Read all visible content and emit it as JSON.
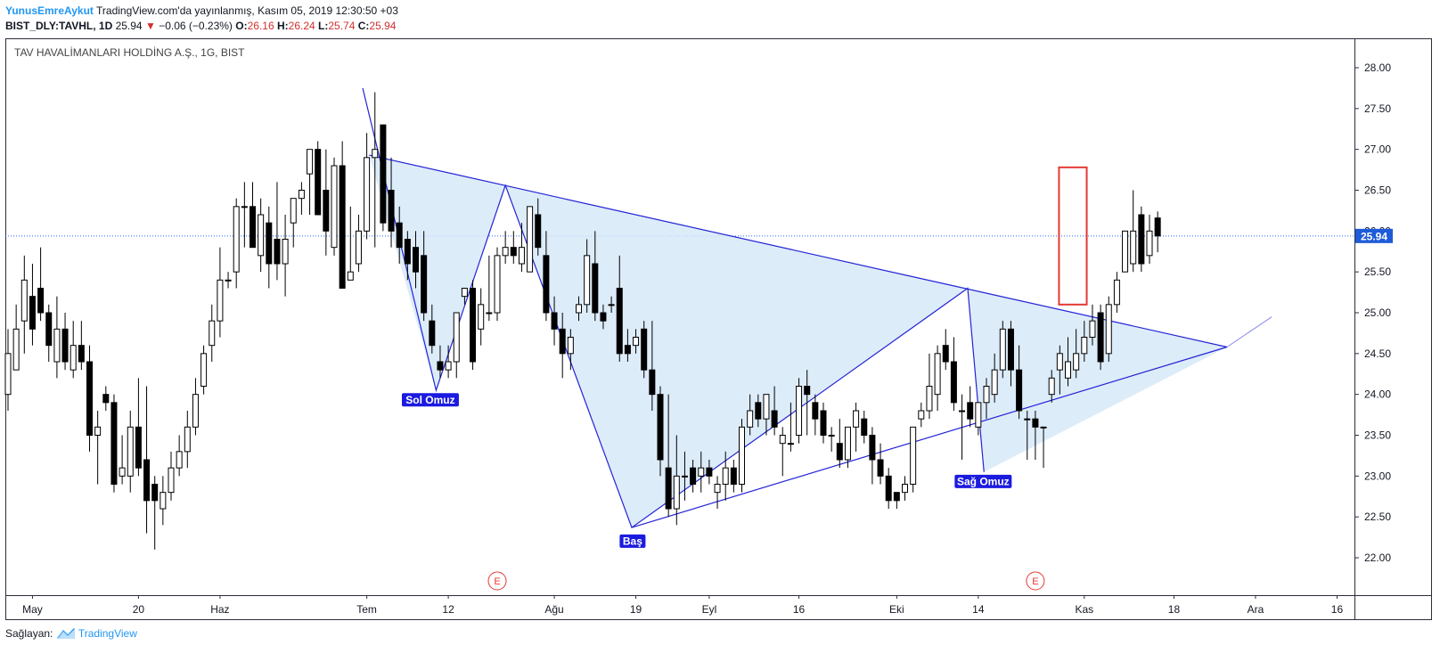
{
  "header": {
    "author": "YunusEmreAykut",
    "published": " TradingView.com'da yayınlanmış, Kasım 05, 2019 12:30:50 +03",
    "symbol": "BIST_DLY:TAVHL, 1D",
    "last": "25.94",
    "change_arrow": "▼",
    "change": "−0.06 (−0.23%)",
    "o_label": "O:",
    "o_val": "26.16",
    "h_label": "H:",
    "h_val": "26.24",
    "l_label": "L:",
    "l_val": "25.74",
    "c_label": "C:",
    "c_val": "25.94"
  },
  "footer": {
    "provider_label": "Sağlayan:",
    "provider_name": "TradingView"
  },
  "colors": {
    "up_body": "#ffffff",
    "down_body": "#000000",
    "wick": "#000000",
    "pattern_line": "#2323d6",
    "pattern_fill": "#d7e9f8",
    "price_line": "#2962ff",
    "highlight_box": "#e53935",
    "earnings": "#e53935",
    "label_bg": "#1b1be0"
  },
  "chart_data": {
    "type": "candlestick",
    "title": "TAV HAVALİMANLARI HOLDİNG A.Ş., 1G, BIST",
    "last_price": 25.94,
    "last_price_label": "25.94",
    "y_ticks": [
      "22.00",
      "22.50",
      "23.00",
      "23.50",
      "24.00",
      "24.50",
      "25.00",
      "25.50",
      "26.00",
      "26.50",
      "27.00",
      "27.50",
      "28.00"
    ],
    "ylim": [
      21.6,
      28.4
    ],
    "x_ticks": [
      {
        "i": 3,
        "label": "May"
      },
      {
        "i": 16,
        "label": "20"
      },
      {
        "i": 26,
        "label": "Haz"
      },
      {
        "i": 44,
        "label": "Tem"
      },
      {
        "i": 54,
        "label": "12"
      },
      {
        "i": 67,
        "label": "Ağu"
      },
      {
        "i": 77,
        "label": "19"
      },
      {
        "i": 86,
        "label": "Eyl"
      },
      {
        "i": 97,
        "label": "16"
      },
      {
        "i": 109,
        "label": "Eki"
      },
      {
        "i": 119,
        "label": "14"
      },
      {
        "i": 132,
        "label": "Kas"
      },
      {
        "i": 143,
        "label": "18"
      },
      {
        "i": 153,
        "label": "Ara"
      },
      {
        "i": 163,
        "label": "16"
      }
    ],
    "candles": [
      {
        "o": 24.0,
        "h": 24.8,
        "l": 23.8,
        "c": 24.5
      },
      {
        "o": 24.3,
        "h": 25.1,
        "l": 24.3,
        "c": 24.8
      },
      {
        "o": 24.9,
        "h": 25.7,
        "l": 24.5,
        "c": 25.4
      },
      {
        "o": 25.2,
        "h": 25.6,
        "l": 24.6,
        "c": 24.8
      },
      {
        "o": 25.3,
        "h": 25.8,
        "l": 24.9,
        "c": 25.0
      },
      {
        "o": 25.0,
        "h": 25.1,
        "l": 24.4,
        "c": 24.6
      },
      {
        "o": 24.4,
        "h": 25.2,
        "l": 24.2,
        "c": 24.8
      },
      {
        "o": 24.8,
        "h": 25.0,
        "l": 24.3,
        "c": 24.4
      },
      {
        "o": 24.3,
        "h": 24.9,
        "l": 24.2,
        "c": 24.6
      },
      {
        "o": 24.6,
        "h": 24.9,
        "l": 24.3,
        "c": 24.4
      },
      {
        "o": 24.4,
        "h": 24.6,
        "l": 23.3,
        "c": 23.5
      },
      {
        "o": 23.5,
        "h": 23.8,
        "l": 22.9,
        "c": 23.6
      },
      {
        "o": 24.0,
        "h": 24.1,
        "l": 23.8,
        "c": 23.9
      },
      {
        "o": 23.9,
        "h": 24.0,
        "l": 22.8,
        "c": 22.9
      },
      {
        "o": 23.0,
        "h": 23.5,
        "l": 22.9,
        "c": 23.1
      },
      {
        "o": 23.0,
        "h": 23.8,
        "l": 22.8,
        "c": 23.6
      },
      {
        "o": 23.6,
        "h": 24.2,
        "l": 23.0,
        "c": 23.1
      },
      {
        "o": 23.2,
        "h": 24.1,
        "l": 22.3,
        "c": 22.7
      },
      {
        "o": 22.9,
        "h": 23.0,
        "l": 22.1,
        "c": 22.7
      },
      {
        "o": 22.6,
        "h": 23.0,
        "l": 22.4,
        "c": 22.8
      },
      {
        "o": 22.8,
        "h": 23.3,
        "l": 22.7,
        "c": 23.1
      },
      {
        "o": 23.1,
        "h": 23.5,
        "l": 23.0,
        "c": 23.3
      },
      {
        "o": 23.3,
        "h": 23.8,
        "l": 23.1,
        "c": 23.6
      },
      {
        "o": 23.6,
        "h": 24.2,
        "l": 23.5,
        "c": 24.0
      },
      {
        "o": 24.1,
        "h": 24.6,
        "l": 24.0,
        "c": 24.5
      },
      {
        "o": 24.6,
        "h": 25.1,
        "l": 24.4,
        "c": 24.9
      },
      {
        "o": 24.9,
        "h": 25.8,
        "l": 24.7,
        "c": 25.4
      },
      {
        "o": 25.4,
        "h": 25.5,
        "l": 25.3,
        "c": 25.4
      },
      {
        "o": 25.5,
        "h": 26.4,
        "l": 25.3,
        "c": 26.3
      },
      {
        "o": 26.3,
        "h": 26.6,
        "l": 25.8,
        "c": 26.3
      },
      {
        "o": 26.3,
        "h": 26.6,
        "l": 25.8,
        "c": 25.8
      },
      {
        "o": 25.7,
        "h": 26.4,
        "l": 25.5,
        "c": 26.2
      },
      {
        "o": 26.1,
        "h": 26.3,
        "l": 25.3,
        "c": 25.6
      },
      {
        "o": 25.9,
        "h": 26.6,
        "l": 25.4,
        "c": 25.6
      },
      {
        "o": 25.6,
        "h": 26.2,
        "l": 25.2,
        "c": 25.9
      },
      {
        "o": 26.1,
        "h": 26.4,
        "l": 25.8,
        "c": 26.4
      },
      {
        "o": 26.4,
        "h": 26.6,
        "l": 26.2,
        "c": 26.5
      },
      {
        "o": 26.7,
        "h": 27.0,
        "l": 26.2,
        "c": 27.0
      },
      {
        "o": 27.0,
        "h": 27.1,
        "l": 26.2,
        "c": 26.2
      },
      {
        "o": 26.5,
        "h": 27.0,
        "l": 25.7,
        "c": 26.0
      },
      {
        "o": 25.8,
        "h": 26.9,
        "l": 25.7,
        "c": 26.8
      },
      {
        "o": 26.8,
        "h": 27.1,
        "l": 25.3,
        "c": 25.3
      },
      {
        "o": 25.4,
        "h": 26.3,
        "l": 25.4,
        "c": 25.5
      },
      {
        "o": 25.6,
        "h": 26.2,
        "l": 25.5,
        "c": 26.0
      },
      {
        "o": 26.0,
        "h": 27.2,
        "l": 25.9,
        "c": 26.9
      },
      {
        "o": 26.9,
        "h": 27.7,
        "l": 25.8,
        "c": 27.0
      },
      {
        "o": 27.3,
        "h": 27.3,
        "l": 26.0,
        "c": 26.1
      },
      {
        "o": 26.5,
        "h": 26.9,
        "l": 25.8,
        "c": 26.0
      },
      {
        "o": 26.1,
        "h": 26.3,
        "l": 25.6,
        "c": 25.8
      },
      {
        "o": 25.9,
        "h": 26.0,
        "l": 25.4,
        "c": 25.6
      },
      {
        "o": 25.8,
        "h": 26.0,
        "l": 25.3,
        "c": 25.5
      },
      {
        "o": 25.7,
        "h": 26.0,
        "l": 24.9,
        "c": 25.0
      },
      {
        "o": 24.9,
        "h": 25.1,
        "l": 24.5,
        "c": 24.6
      },
      {
        "o": 24.4,
        "h": 24.6,
        "l": 24.2,
        "c": 24.3
      },
      {
        "o": 24.3,
        "h": 24.6,
        "l": 24.2,
        "c": 24.4
      },
      {
        "o": 24.4,
        "h": 25.0,
        "l": 24.2,
        "c": 25.0
      },
      {
        "o": 25.2,
        "h": 25.3,
        "l": 25.1,
        "c": 25.3
      },
      {
        "o": 25.3,
        "h": 25.4,
        "l": 24.3,
        "c": 24.4
      },
      {
        "o": 24.8,
        "h": 25.3,
        "l": 24.6,
        "c": 25.1
      },
      {
        "o": 25.0,
        "h": 25.7,
        "l": 24.9,
        "c": 25.0
      },
      {
        "o": 25.0,
        "h": 25.8,
        "l": 24.9,
        "c": 25.7
      },
      {
        "o": 25.7,
        "h": 26.0,
        "l": 25.6,
        "c": 25.8
      },
      {
        "o": 25.8,
        "h": 26.0,
        "l": 25.6,
        "c": 25.7
      },
      {
        "o": 25.6,
        "h": 26.1,
        "l": 25.5,
        "c": 25.8
      },
      {
        "o": 25.5,
        "h": 26.3,
        "l": 25.5,
        "c": 26.3
      },
      {
        "o": 26.2,
        "h": 26.4,
        "l": 25.7,
        "c": 25.8
      },
      {
        "o": 25.7,
        "h": 26.0,
        "l": 24.9,
        "c": 25.0
      },
      {
        "o": 25.0,
        "h": 25.2,
        "l": 24.6,
        "c": 24.8
      },
      {
        "o": 24.8,
        "h": 25.0,
        "l": 24.2,
        "c": 24.5
      },
      {
        "o": 24.5,
        "h": 24.8,
        "l": 24.3,
        "c": 24.7
      },
      {
        "o": 25.0,
        "h": 25.2,
        "l": 24.9,
        "c": 25.1
      },
      {
        "o": 25.1,
        "h": 25.9,
        "l": 25.0,
        "c": 25.7
      },
      {
        "o": 25.6,
        "h": 26.0,
        "l": 24.9,
        "c": 25.0
      },
      {
        "o": 25.0,
        "h": 25.1,
        "l": 24.8,
        "c": 24.9
      },
      {
        "o": 25.1,
        "h": 25.2,
        "l": 25.0,
        "c": 25.1
      },
      {
        "o": 25.3,
        "h": 25.7,
        "l": 24.4,
        "c": 24.5
      },
      {
        "o": 24.6,
        "h": 24.8,
        "l": 24.4,
        "c": 24.5
      },
      {
        "o": 24.6,
        "h": 24.8,
        "l": 24.5,
        "c": 24.7
      },
      {
        "o": 24.8,
        "h": 24.9,
        "l": 24.2,
        "c": 24.3
      },
      {
        "o": 24.3,
        "h": 24.9,
        "l": 23.8,
        "c": 24.0
      },
      {
        "o": 24.0,
        "h": 24.1,
        "l": 23.0,
        "c": 23.2
      },
      {
        "o": 23.1,
        "h": 24.0,
        "l": 22.5,
        "c": 22.6
      },
      {
        "o": 22.6,
        "h": 23.5,
        "l": 22.4,
        "c": 23.0
      },
      {
        "o": 23.0,
        "h": 23.3,
        "l": 22.7,
        "c": 23.0
      },
      {
        "o": 23.1,
        "h": 23.2,
        "l": 22.8,
        "c": 22.9
      },
      {
        "o": 23.0,
        "h": 23.3,
        "l": 22.8,
        "c": 23.1
      },
      {
        "o": 23.1,
        "h": 23.2,
        "l": 22.9,
        "c": 23.0
      },
      {
        "o": 22.8,
        "h": 23.0,
        "l": 22.6,
        "c": 22.9
      },
      {
        "o": 22.9,
        "h": 23.3,
        "l": 22.7,
        "c": 23.1
      },
      {
        "o": 23.1,
        "h": 23.2,
        "l": 22.8,
        "c": 22.9
      },
      {
        "o": 22.9,
        "h": 23.7,
        "l": 22.8,
        "c": 23.6
      },
      {
        "o": 23.6,
        "h": 24.0,
        "l": 23.5,
        "c": 23.8
      },
      {
        "o": 23.9,
        "h": 24.0,
        "l": 23.6,
        "c": 23.7
      },
      {
        "o": 23.7,
        "h": 24.0,
        "l": 23.5,
        "c": 24.0
      },
      {
        "o": 23.8,
        "h": 24.1,
        "l": 23.5,
        "c": 23.6
      },
      {
        "o": 23.4,
        "h": 23.6,
        "l": 23.0,
        "c": 23.5
      },
      {
        "o": 23.4,
        "h": 23.9,
        "l": 23.3,
        "c": 23.4
      },
      {
        "o": 23.5,
        "h": 24.2,
        "l": 23.4,
        "c": 24.1
      },
      {
        "o": 24.1,
        "h": 24.3,
        "l": 23.5,
        "c": 24.0
      },
      {
        "o": 23.9,
        "h": 24.0,
        "l": 23.5,
        "c": 23.7
      },
      {
        "o": 23.8,
        "h": 23.9,
        "l": 23.4,
        "c": 23.5
      },
      {
        "o": 23.5,
        "h": 23.6,
        "l": 23.3,
        "c": 23.5
      },
      {
        "o": 23.4,
        "h": 23.7,
        "l": 23.1,
        "c": 23.2
      },
      {
        "o": 23.2,
        "h": 23.6,
        "l": 23.1,
        "c": 23.6
      },
      {
        "o": 23.6,
        "h": 23.9,
        "l": 23.3,
        "c": 23.8
      },
      {
        "o": 23.7,
        "h": 23.8,
        "l": 23.4,
        "c": 23.5
      },
      {
        "o": 23.5,
        "h": 23.6,
        "l": 22.9,
        "c": 23.2
      },
      {
        "o": 23.2,
        "h": 23.4,
        "l": 22.9,
        "c": 23.0
      },
      {
        "o": 23.0,
        "h": 23.1,
        "l": 22.6,
        "c": 22.7
      },
      {
        "o": 22.8,
        "h": 22.8,
        "l": 22.6,
        "c": 22.7
      },
      {
        "o": 22.8,
        "h": 23.0,
        "l": 22.7,
        "c": 22.9
      },
      {
        "o": 22.9,
        "h": 23.6,
        "l": 22.8,
        "c": 23.6
      },
      {
        "o": 23.7,
        "h": 23.9,
        "l": 23.6,
        "c": 23.8
      },
      {
        "o": 23.8,
        "h": 24.5,
        "l": 23.7,
        "c": 24.1
      },
      {
        "o": 24.0,
        "h": 24.6,
        "l": 23.8,
        "c": 24.5
      },
      {
        "o": 24.6,
        "h": 24.8,
        "l": 24.3,
        "c": 24.4
      },
      {
        "o": 24.4,
        "h": 24.7,
        "l": 23.8,
        "c": 23.9
      },
      {
        "o": 23.8,
        "h": 24.0,
        "l": 23.2,
        "c": 23.8
      },
      {
        "o": 23.9,
        "h": 24.1,
        "l": 23.6,
        "c": 23.7
      },
      {
        "o": 23.6,
        "h": 23.9,
        "l": 23.5,
        "c": 23.9
      },
      {
        "o": 23.9,
        "h": 24.2,
        "l": 23.7,
        "c": 24.1
      },
      {
        "o": 24.0,
        "h": 24.5,
        "l": 23.9,
        "c": 24.3
      },
      {
        "o": 24.3,
        "h": 24.9,
        "l": 24.2,
        "c": 24.8
      },
      {
        "o": 24.8,
        "h": 24.9,
        "l": 24.1,
        "c": 24.3
      },
      {
        "o": 24.3,
        "h": 24.6,
        "l": 23.7,
        "c": 23.8
      },
      {
        "o": 23.7,
        "h": 23.8,
        "l": 23.2,
        "c": 23.7
      },
      {
        "o": 23.7,
        "h": 23.8,
        "l": 23.2,
        "c": 23.6
      },
      {
        "o": 23.6,
        "h": 23.6,
        "l": 23.1,
        "c": 23.6
      },
      {
        "o": 24.0,
        "h": 24.3,
        "l": 23.9,
        "c": 24.2
      },
      {
        "o": 24.3,
        "h": 24.6,
        "l": 24.0,
        "c": 24.5
      },
      {
        "o": 24.2,
        "h": 24.7,
        "l": 24.1,
        "c": 24.4
      },
      {
        "o": 24.3,
        "h": 24.8,
        "l": 24.2,
        "c": 24.5
      },
      {
        "o": 24.5,
        "h": 24.9,
        "l": 24.4,
        "c": 24.7
      },
      {
        "o": 24.7,
        "h": 25.1,
        "l": 24.6,
        "c": 24.9
      },
      {
        "o": 25.0,
        "h": 25.1,
        "l": 24.3,
        "c": 24.4
      },
      {
        "o": 24.5,
        "h": 25.2,
        "l": 24.4,
        "c": 25.1
      },
      {
        "o": 25.1,
        "h": 25.5,
        "l": 25.0,
        "c": 25.4
      },
      {
        "o": 25.5,
        "h": 26.0,
        "l": 25.5,
        "c": 26.0
      },
      {
        "o": 25.6,
        "h": 26.5,
        "l": 25.5,
        "c": 26.0
      },
      {
        "o": 26.2,
        "h": 26.3,
        "l": 25.5,
        "c": 25.6
      },
      {
        "o": 25.7,
        "h": 26.2,
        "l": 25.6,
        "c": 26.0
      },
      {
        "o": 26.16,
        "h": 26.24,
        "l": 25.74,
        "c": 25.94
      }
    ],
    "pattern_points": [
      {
        "i": 44.3,
        "p": 26.93
      },
      {
        "i": 52.5,
        "p": 24.05
      },
      {
        "i": 61.0,
        "p": 26.56
      },
      {
        "i": 76.5,
        "p": 22.37
      },
      {
        "i": 117.7,
        "p": 25.3
      },
      {
        "i": 119.7,
        "p": 23.05
      },
      {
        "i": 149.5,
        "p": 24.58
      }
    ],
    "pattern_left_top": {
      "i": 43.5,
      "p": 27.75
    },
    "pattern_extension_end": {
      "i": 155.0,
      "p": 24.95
    },
    "labels": [
      {
        "text": "Sol Omuz",
        "i": 51.8,
        "p": 23.95
      },
      {
        "text": "Baş",
        "i": 76.6,
        "p": 22.22
      },
      {
        "text": "Sağ Omuz",
        "i": 119.6,
        "p": 22.95
      }
    ],
    "highlight_box": {
      "i0": 128.9,
      "i1": 132.3,
      "p0": 25.1,
      "p1": 26.78
    },
    "earnings_markers": [
      {
        "i": 60,
        "text": "E"
      },
      {
        "i": 126,
        "text": "E"
      }
    ]
  }
}
